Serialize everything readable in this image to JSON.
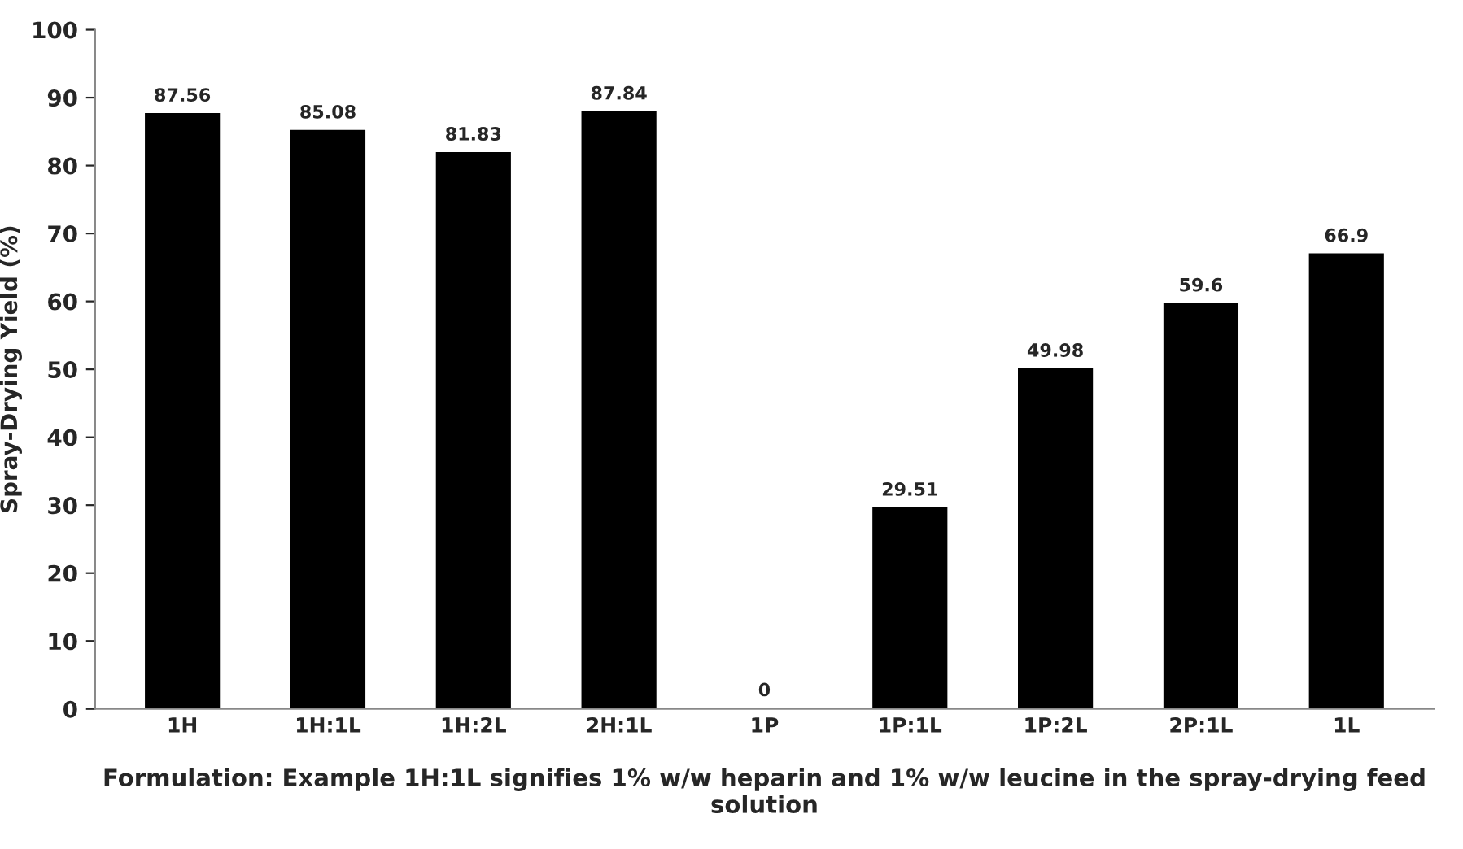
{
  "chart_data": {
    "type": "bar",
    "categories": [
      "1H",
      "1H:1L",
      "1H:2L",
      "2H:1L",
      "1P",
      "1P:1L",
      "1P:2L",
      "2P:1L",
      "1L"
    ],
    "values": [
      87.56,
      85.08,
      81.83,
      87.84,
      0,
      29.51,
      49.98,
      59.6,
      66.9
    ],
    "color": "#000000",
    "xlabel": "Formulation: Example 1H:1L signifies 1% w/w heparin and 1% w/w leucine in the spray-drying feed solution",
    "ylabel": "Spray-Drying Yield (%)",
    "ylim": [
      0,
      100
    ],
    "yticks": [
      0,
      10,
      20,
      30,
      40,
      50,
      60,
      70,
      80,
      90,
      100
    ],
    "data_labels": true,
    "grid": false,
    "legend": false
  }
}
